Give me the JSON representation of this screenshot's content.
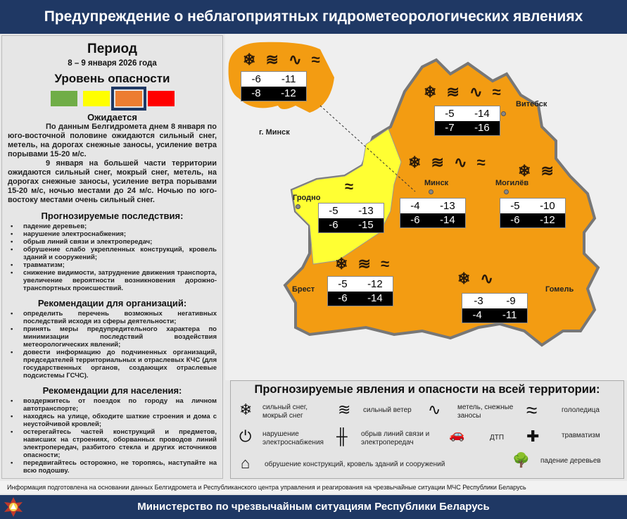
{
  "header": {
    "title": "Предупреждение о неблагоприятных гидрометеорологических явлениях"
  },
  "left": {
    "period_title": "Период",
    "period": "8 – 9 января 2026 года",
    "level_title": "Уровень опасности",
    "levels": [
      {
        "color": "#70ad47"
      },
      {
        "color": "#ffff00"
      },
      {
        "color": "#ed7d31",
        "selected": true
      },
      {
        "color": "#ff0000"
      }
    ],
    "expected_title": "Ожидается",
    "expected_p1": "По данным Белгидромета днем 8 января по юго-восточной половине ожидаются сильный снег, метель, на дорогах снежные заносы, усиление ветра порывами 15-20 м/с.",
    "expected_p2": "9 января на большей части территории ожидаются сильный снег, мокрый снег, метель, на дорогах снежные заносы, усиление ветра порывами 15-20 м/с, ночью местами до 24 м/с. Ночью по юго-востоку местами очень сильный снег.",
    "consequences_title": "Прогнозируемые последствия:",
    "consequences": [
      "падение деревьев;",
      "нарушение электроснабжения;",
      "обрыв линий связи и электропередач;",
      "обрушение слабо укрепленных конструкций, кровель зданий и сооружений;",
      "травматизм;",
      "снижение видимости, затруднение движения транспорта, увеличение вероятности возникновения дорожно-транспортных происшествий."
    ],
    "org_title": "Рекомендации для организаций:",
    "org": [
      "определить перечень возможных негативных последствий исходя из сферы деятельности;",
      "принять меры предупредительного характера по минимизации последствий воздействия метеорологических явлений;",
      "довести информацию до подчиненных организаций, председателей территориальных и отраслевых КЧС (для государственных органов, создающих отраслевые подсистемы ГСЧС)."
    ],
    "pop_title": "Рекомендации для населения:",
    "pop": [
      "воздержитесь от поездок по городу на личном автотранспорте;",
      "находясь на улице, обходите шаткие строения и дома с неустойчивой кровлей;",
      "остерегайтесь частей конструкций и предметов, нависших на строениях, оборванных проводов линий электропередач, разбитого стекла и других источников опасности;",
      "передвигайтесь осторожно, не торопясь, наступайте на всю подошву."
    ]
  },
  "map": {
    "colors": {
      "orange": "#f39c12",
      "yellow": "#ffff33",
      "border": "#777777"
    },
    "cities": {
      "minsk_city": "г. Минск",
      "vitebsk": "Витебск",
      "grodno": "Гродно",
      "minsk": "Минск",
      "mogilev": "Могилёв",
      "brest": "Брест",
      "gomel": "Гомель"
    },
    "regions": [
      {
        "name": "minsk-city",
        "day": [
          "-6",
          "-11"
        ],
        "night": [
          "-8",
          "-12"
        ],
        "icons": "❄ ≋ ∿ ≈"
      },
      {
        "name": "vitebsk",
        "day": [
          "-5",
          "-14"
        ],
        "night": [
          "-7",
          "-16"
        ],
        "icons": "❄ ≋ ∿ ≈"
      },
      {
        "name": "grodno",
        "day": [
          "-5",
          "-13"
        ],
        "night": [
          "-6",
          "-15"
        ],
        "icons": "≈"
      },
      {
        "name": "minsk",
        "day": [
          "-4",
          "-13"
        ],
        "night": [
          "-6",
          "-14"
        ],
        "icons": "❄ ≋ ∿ ≈"
      },
      {
        "name": "mogilev",
        "day": [
          "-5",
          "-10"
        ],
        "night": [
          "-6",
          "-12"
        ],
        "icons": "❄ ≋"
      },
      {
        "name": "brest",
        "day": [
          "-5",
          "-12"
        ],
        "night": [
          "-6",
          "-14"
        ],
        "icons": "❄ ≋ ≈"
      },
      {
        "name": "gomel",
        "day": [
          "-3",
          "-9"
        ],
        "night": [
          "-4",
          "-11"
        ],
        "icons": "❄ ∿"
      }
    ]
  },
  "legend": {
    "title": "Прогнозируемые явления и опасности на всей территории:",
    "items": [
      {
        "icon": "snowflake-icon",
        "glyph": "❄",
        "label": "сильный снег, мокрый снег"
      },
      {
        "icon": "wind-icon",
        "glyph": "≋",
        "label": "сильный ветер"
      },
      {
        "icon": "blizzard-icon",
        "glyph": "∿",
        "label": "метель, снежные заносы"
      },
      {
        "icon": "ice-icon",
        "glyph": "≈",
        "label": "гололедица"
      },
      {
        "icon": "plug-icon",
        "glyph": "⏻",
        "label": "нарушение электроснабжения"
      },
      {
        "icon": "power-line-icon",
        "glyph": "╫",
        "label": "обрыв линий связи и электропередач"
      },
      {
        "icon": "car-crash-icon",
        "glyph": "🚗",
        "label": "ДТП"
      },
      {
        "icon": "injury-icon",
        "glyph": "✚",
        "label": "травматизм"
      },
      {
        "icon": "collapse-icon",
        "glyph": "⌂",
        "label": "обрушение конструкций, кровель зданий и сооружений"
      },
      {
        "icon": "tree-icon",
        "glyph": "🌳",
        "label": "падение деревьев"
      }
    ]
  },
  "footer": {
    "note": "Информация подготовлена на основании данных Белгидромета и Республиканского центра управления и реагирования на чрезвычайные ситуации МЧС Республики Беларусь",
    "ministry": "Министерство по чрезвычайным ситуациям Республики Беларусь"
  }
}
